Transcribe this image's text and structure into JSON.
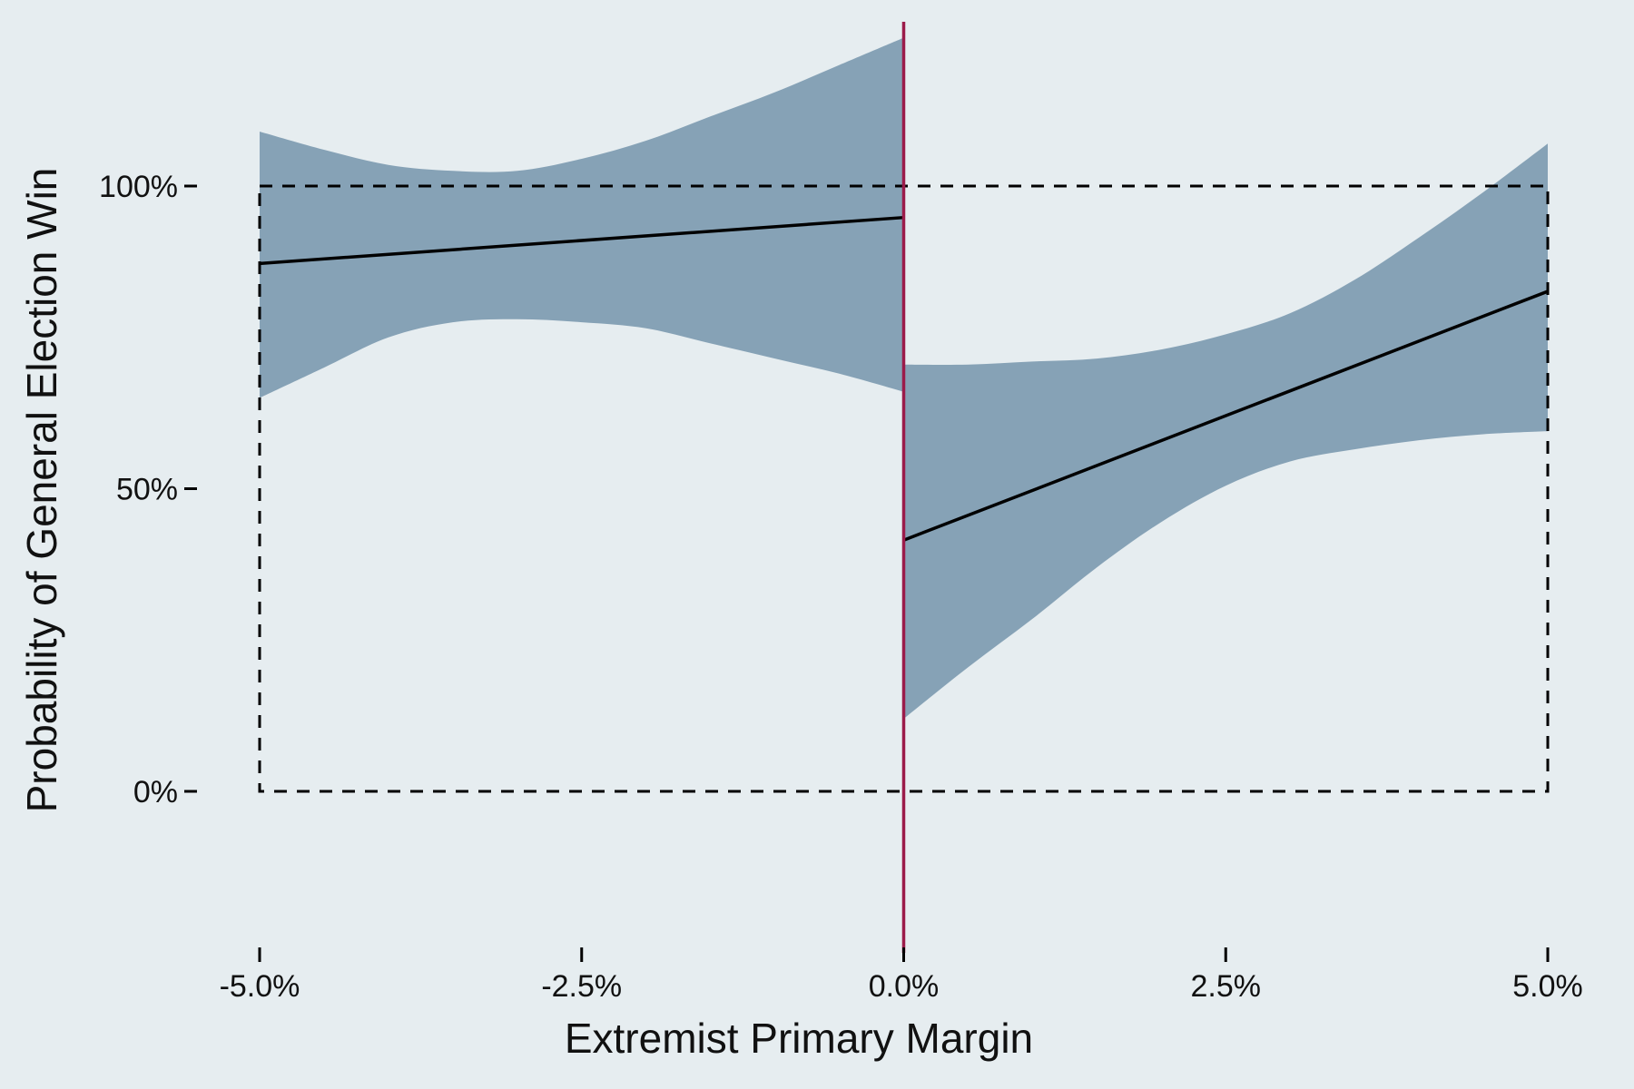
{
  "chart_data": {
    "type": "line",
    "title": "",
    "xlabel": "Extremist Primary Margin",
    "ylabel": "Probability of General Election Win",
    "xlim": [
      -5.6,
      5.2
    ],
    "ylim": [
      -25,
      127
    ],
    "x_ticks": [
      {
        "value": -5.0,
        "label": "-5.0%"
      },
      {
        "value": -2.5,
        "label": "-2.5%"
      },
      {
        "value": 0.0,
        "label": "0.0%"
      },
      {
        "value": 2.5,
        "label": "2.5%"
      },
      {
        "value": 5.0,
        "label": "5.0%"
      }
    ],
    "y_ticks": [
      {
        "value": 0,
        "label": "0%"
      },
      {
        "value": 50,
        "label": "50%"
      },
      {
        "value": 100,
        "label": "100%"
      }
    ],
    "cutoff": {
      "x": 0.0,
      "color": "#9b1b4a"
    },
    "reference_box": {
      "x": [
        -5.0,
        5.0
      ],
      "y": [
        0,
        100
      ],
      "style": "dashed"
    },
    "grid": false,
    "legend": "none",
    "colors": {
      "band": "#86a2b6",
      "line": "#000000",
      "background": "#e6edf0"
    },
    "series": [
      {
        "x": [
          -5.0,
          0.0
        ],
        "y": [
          87.2,
          94.8
        ],
        "ci_x": [
          -5.0,
          -4.5,
          -4.0,
          -3.5,
          -3.0,
          -2.5,
          -2.0,
          -1.5,
          -1.0,
          -0.5,
          0.0
        ],
        "ci_upper": [
          109,
          106,
          103.5,
          102.5,
          102.5,
          104.5,
          107.5,
          111.5,
          115.5,
          120,
          124.5
        ],
        "ci_lower": [
          65,
          70,
          75,
          77.5,
          78,
          77.5,
          76.5,
          74,
          71.5,
          69,
          66
        ]
      },
      {
        "x": [
          0.0,
          5.0
        ],
        "y": [
          41.5,
          82.6
        ],
        "ci_x": [
          0.0,
          0.5,
          1.0,
          1.5,
          2.0,
          2.5,
          3.0,
          3.5,
          4.0,
          4.5,
          5.0
        ],
        "ci_upper": [
          70.5,
          70.5,
          71,
          71.5,
          73,
          75.5,
          79,
          84.5,
          91.5,
          99,
          107
        ],
        "ci_lower": [
          12,
          20.5,
          28.5,
          37,
          44.5,
          50.5,
          54.5,
          56.5,
          58,
          59,
          59.5
        ]
      }
    ]
  }
}
